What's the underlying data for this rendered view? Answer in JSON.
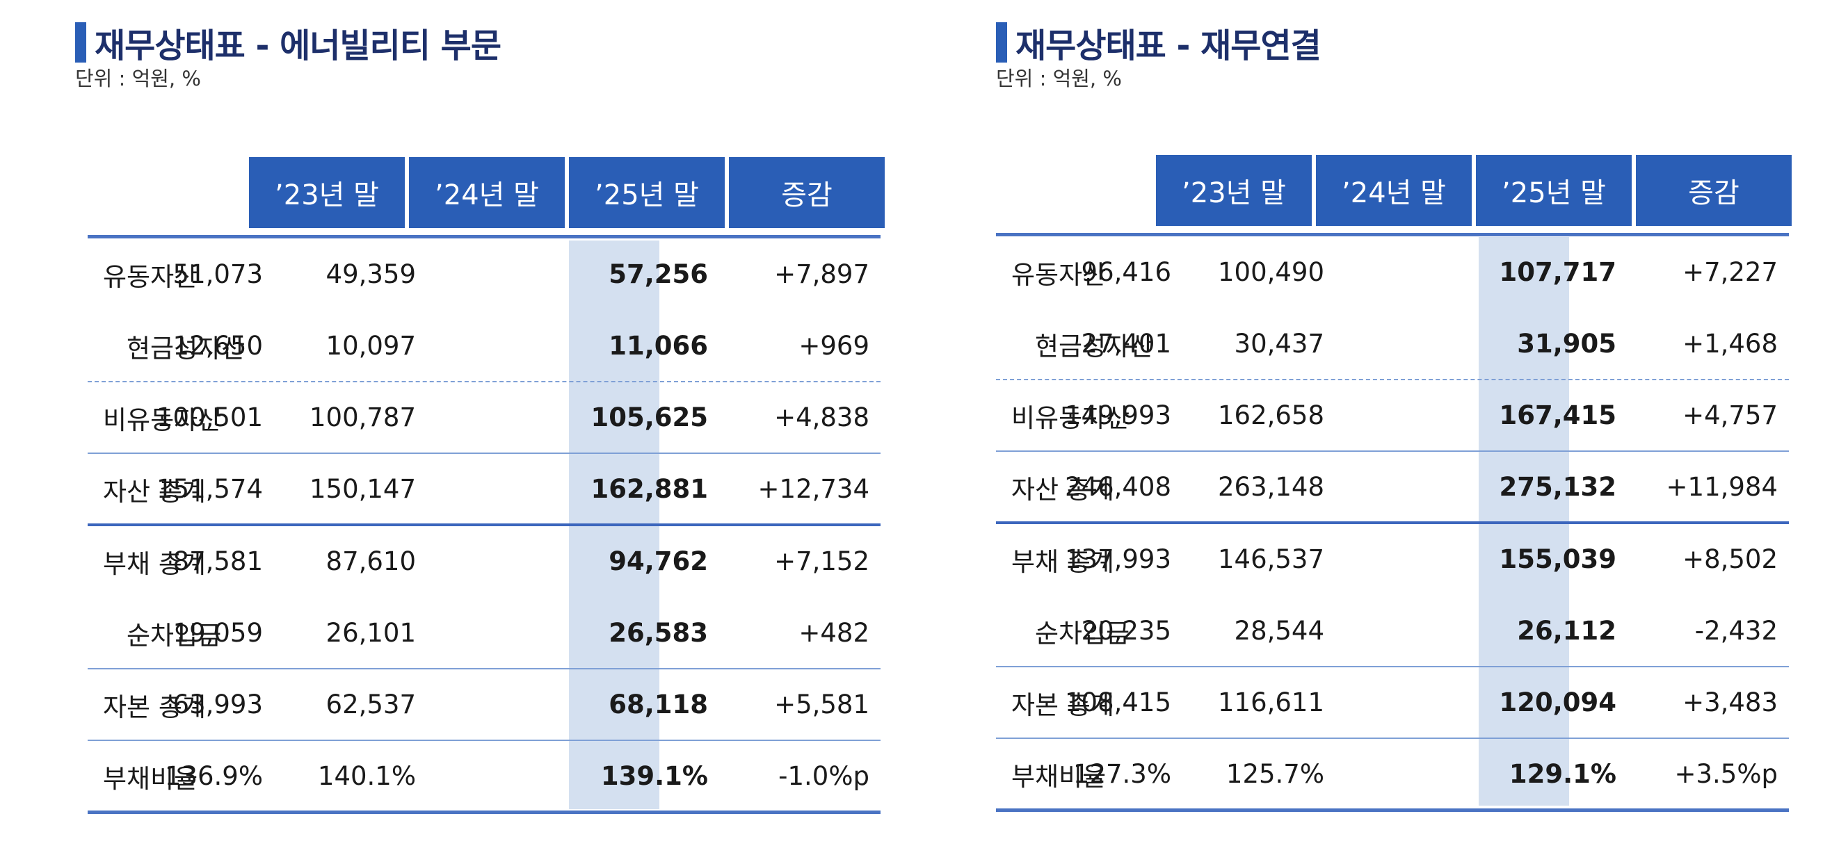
{
  "tables": [
    {
      "title": "재무상태표 - 에너빌리티 부문",
      "unit": "단위 : 억원, %",
      "columns": [
        "’23년 말",
        "’24년 말",
        "’25년 말",
        "증감"
      ],
      "rows": [
        {
          "label": "유동자산",
          "indent": false,
          "values": [
            "51,073",
            "49,359",
            "57,256",
            "+7,897"
          ]
        },
        {
          "label": "현금성자산",
          "indent": true,
          "values": [
            "12,650",
            "10,097",
            "11,066",
            "+969"
          ]
        },
        {
          "label": "비유동자산",
          "indent": false,
          "values": [
            "100,501",
            "100,787",
            "105,625",
            "+4,838"
          ]
        },
        {
          "label": "자산 총계",
          "indent": false,
          "values": [
            "151,574",
            "150,147",
            "162,881",
            "+12,734"
          ]
        },
        {
          "label": "부채 총계",
          "indent": false,
          "values": [
            "87,581",
            "87,610",
            "94,762",
            "+7,152"
          ]
        },
        {
          "label": "순차입금",
          "indent": true,
          "values": [
            "19,059",
            "26,101",
            "26,583",
            "+482"
          ]
        },
        {
          "label": "자본 총계",
          "indent": false,
          "values": [
            "63,993",
            "62,537",
            "68,118",
            "+5,581"
          ]
        },
        {
          "label": "부채비율",
          "indent": false,
          "values": [
            "136.9%",
            "140.1%",
            "139.1%",
            "-1.0%p"
          ]
        }
      ]
    },
    {
      "title": "재무상태표 - 재무연결",
      "unit": "단위 : 억원, %",
      "columns": [
        "’23년 말",
        "’24년 말",
        "’25년 말",
        "증감"
      ],
      "rows": [
        {
          "label": "유동자산",
          "indent": false,
          "values": [
            "96,416",
            "100,490",
            "107,717",
            "+7,227"
          ]
        },
        {
          "label": "현금성자산",
          "indent": true,
          "values": [
            "27,401",
            "30,437",
            "31,905",
            "+1,468"
          ]
        },
        {
          "label": "비유동자산",
          "indent": false,
          "values": [
            "149,993",
            "162,658",
            "167,415",
            "+4,757"
          ]
        },
        {
          "label": "자산 총계",
          "indent": false,
          "values": [
            "246,408",
            "263,148",
            "275,132",
            "+11,984"
          ]
        },
        {
          "label": "부채 총계",
          "indent": false,
          "values": [
            "137,993",
            "146,537",
            "155,039",
            "+8,502"
          ]
        },
        {
          "label": "순차입금",
          "indent": true,
          "values": [
            "20,235",
            "28,544",
            "26,112",
            "-2,432"
          ]
        },
        {
          "label": "자본 총계",
          "indent": false,
          "values": [
            "108,415",
            "116,611",
            "120,094",
            "+3,483"
          ]
        },
        {
          "label": "부채비율",
          "indent": false,
          "values": [
            "127.3%",
            "125.7%",
            "129.1%",
            "+3.5%p"
          ]
        }
      ]
    }
  ],
  "colors": {
    "header_bg": "#2a5eb6",
    "title_text": "#1d2f6a",
    "highlight_col": "#d4e0f0",
    "rule": "#4a73c3"
  }
}
